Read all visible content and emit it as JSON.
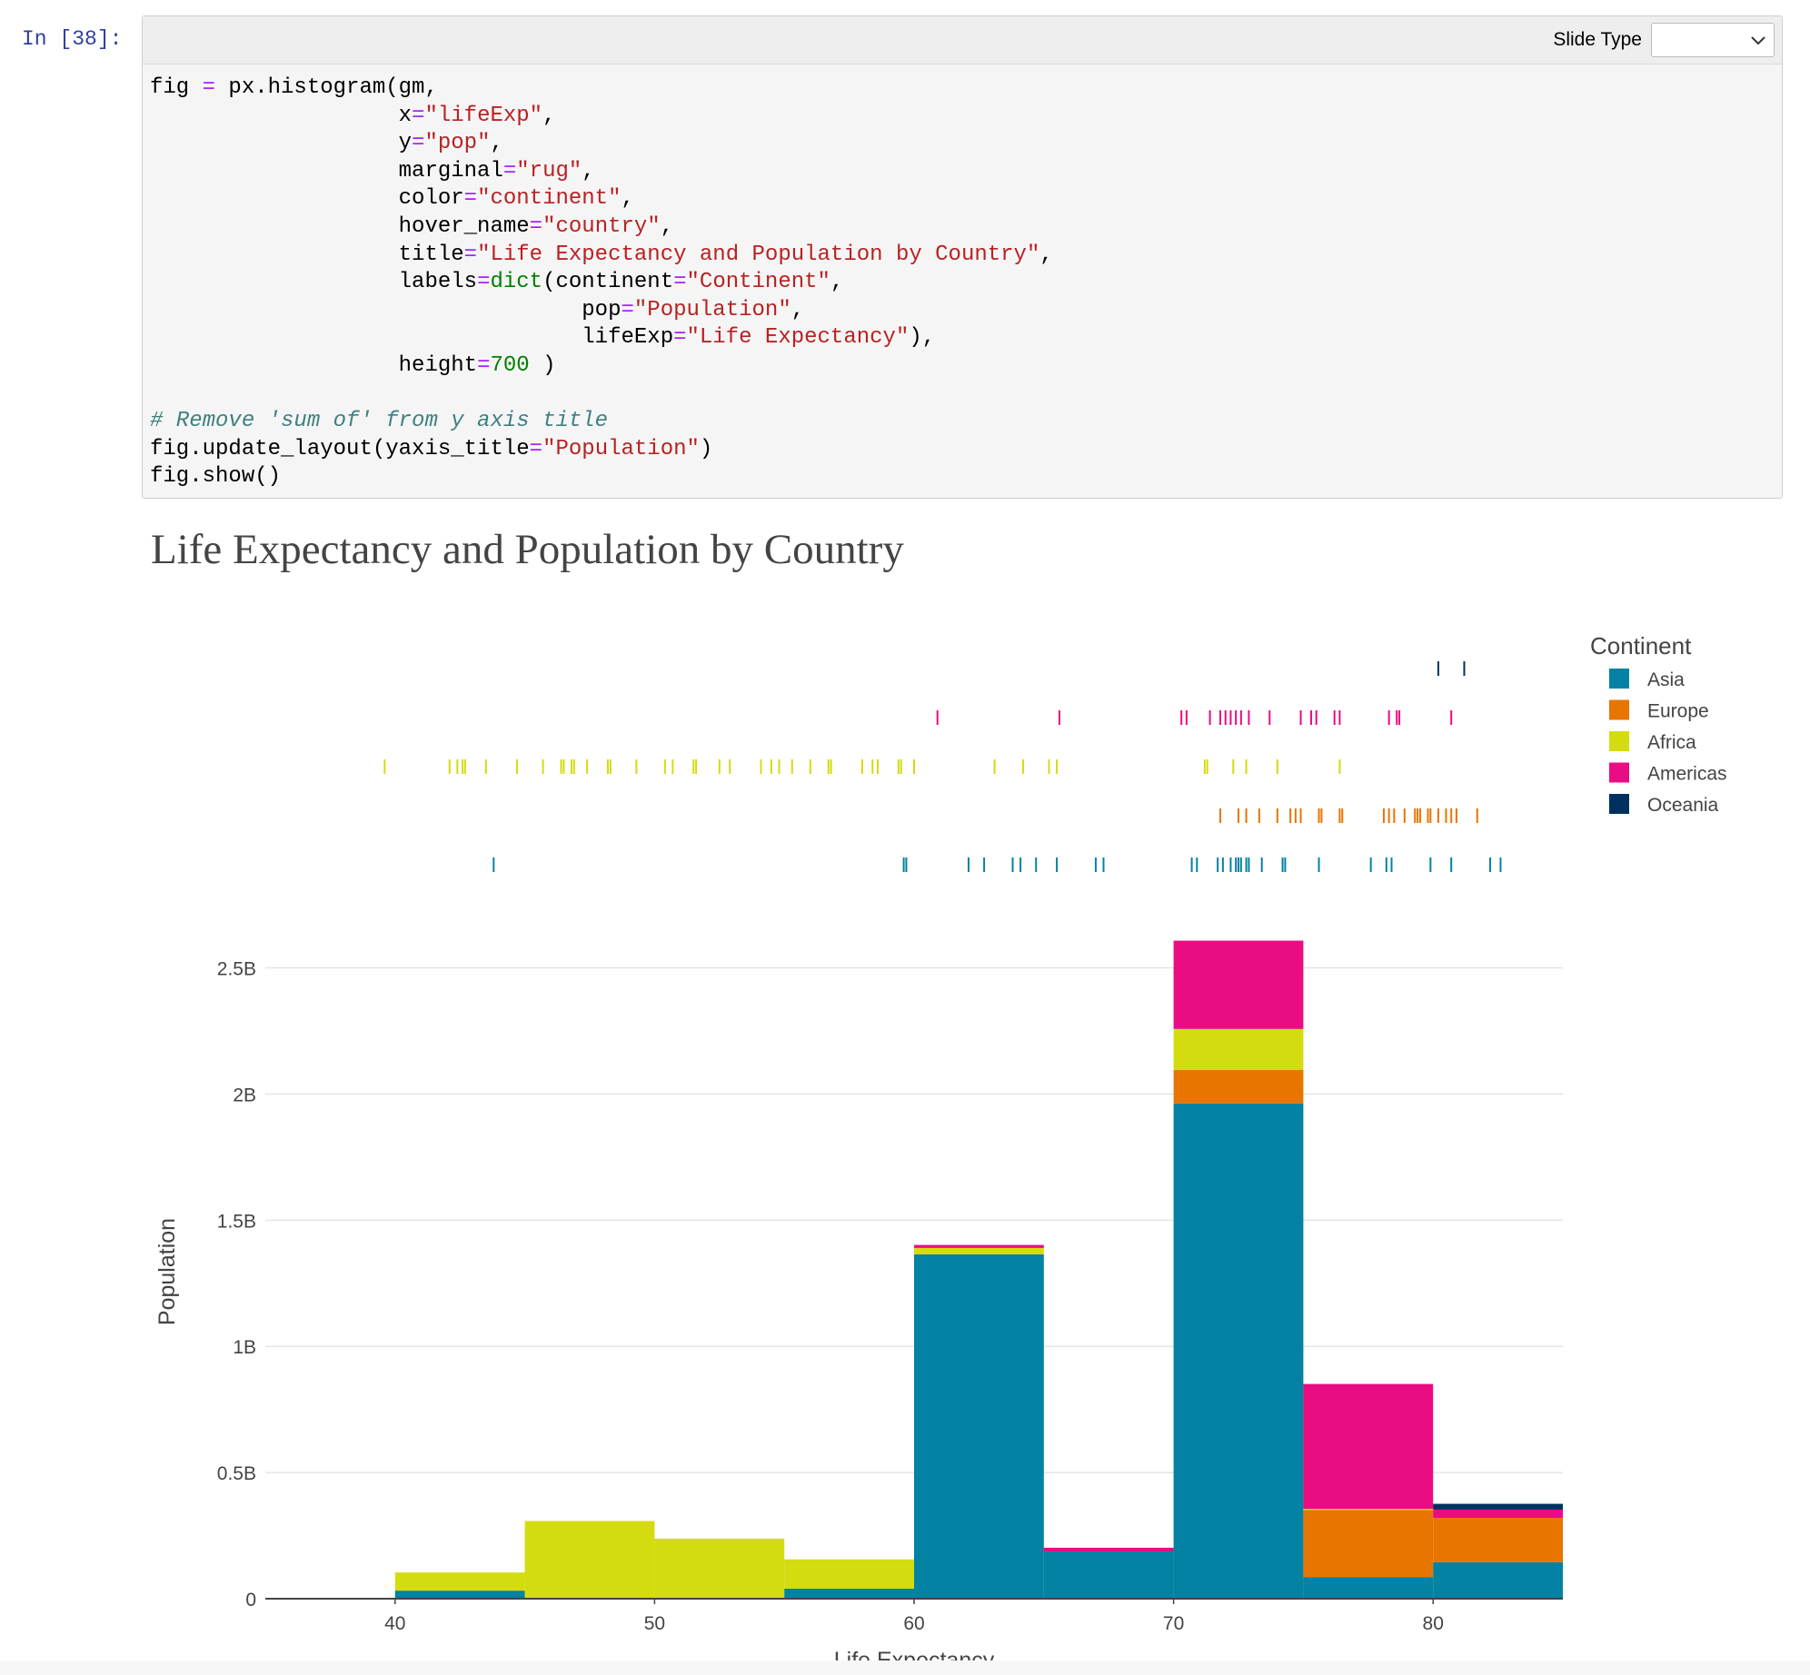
{
  "cell": {
    "prompt": "In [38]:",
    "slide_type_label": "Slide Type",
    "slide_type_value": "",
    "code_lines": [
      [
        [
          "fig ",
          ""
        ],
        [
          "=",
          "op"
        ],
        [
          " px.histogram(gm,",
          ""
        ]
      ],
      [
        [
          "                   x",
          ""
        ],
        [
          "=",
          "op"
        ],
        [
          "\"lifeExp\"",
          "str"
        ],
        [
          ",",
          ""
        ]
      ],
      [
        [
          "                   y",
          ""
        ],
        [
          "=",
          "op"
        ],
        [
          "\"pop\"",
          "str"
        ],
        [
          ",",
          ""
        ]
      ],
      [
        [
          "                   marginal",
          ""
        ],
        [
          "=",
          "op"
        ],
        [
          "\"rug\"",
          "str"
        ],
        [
          ",",
          ""
        ]
      ],
      [
        [
          "                   color",
          ""
        ],
        [
          "=",
          "op"
        ],
        [
          "\"continent\"",
          "str"
        ],
        [
          ",",
          ""
        ]
      ],
      [
        [
          "                   hover_name",
          ""
        ],
        [
          "=",
          "op"
        ],
        [
          "\"country\"",
          "str"
        ],
        [
          ",",
          ""
        ]
      ],
      [
        [
          "                   title",
          ""
        ],
        [
          "=",
          "op"
        ],
        [
          "\"Life Expectancy and Population by Country\"",
          "str"
        ],
        [
          ",",
          ""
        ]
      ],
      [
        [
          "                   labels",
          ""
        ],
        [
          "=",
          "op"
        ],
        [
          "dict",
          "bi"
        ],
        [
          "(continent",
          ""
        ],
        [
          "=",
          "op"
        ],
        [
          "\"Continent\"",
          "str"
        ],
        [
          ",",
          ""
        ]
      ],
      [
        [
          "                                 pop",
          ""
        ],
        [
          "=",
          "op"
        ],
        [
          "\"Population\"",
          "str"
        ],
        [
          ",",
          ""
        ]
      ],
      [
        [
          "                                 lifeExp",
          ""
        ],
        [
          "=",
          "op"
        ],
        [
          "\"Life Expectancy\"",
          "str"
        ],
        [
          "),",
          ""
        ]
      ],
      [
        [
          "                   height",
          ""
        ],
        [
          "=",
          "op"
        ],
        [
          "700",
          "num"
        ],
        [
          " )",
          ""
        ]
      ],
      [],
      [
        [
          "# Remove 'sum of' from y axis title",
          "cm"
        ]
      ],
      [
        [
          "fig.update_layout(yaxis_title",
          ""
        ],
        [
          "=",
          "op"
        ],
        [
          "\"Population\"",
          "str"
        ],
        [
          ")",
          ""
        ]
      ],
      [
        [
          "fig.show()",
          ""
        ]
      ]
    ]
  },
  "chart_data": {
    "type": "bar",
    "title": "Life Expectancy and Population by Country",
    "xlabel": "Life Expectancy",
    "ylabel": "Population",
    "xlim": [
      35,
      85
    ],
    "ylim": [
      0,
      2600000000.0
    ],
    "x_ticks": [
      40,
      50,
      60,
      70,
      80
    ],
    "y_ticks": [
      0,
      500000000,
      1000000000,
      1500000000,
      2000000000,
      2500000000
    ],
    "y_tick_labels": [
      "0",
      "0.5B",
      "1B",
      "1.5B",
      "2B",
      "2.5B"
    ],
    "bins": [
      "40-45",
      "45-50",
      "50-55",
      "55-60",
      "60-65",
      "65-70",
      "70-75",
      "75-80",
      "80-85"
    ],
    "bin_edges": [
      40,
      45,
      50,
      55,
      60,
      65,
      70,
      75,
      80,
      85
    ],
    "legend_title": "Continent",
    "legend_position": "top-right",
    "grid": true,
    "series": [
      {
        "name": "Asia",
        "color": "#0382a3",
        "values": [
          32000000,
          0,
          0,
          40000000,
          1365000000,
          187000000,
          1963000000,
          86000000,
          145000000
        ]
      },
      {
        "name": "Europe",
        "color": "#e87500",
        "values": [
          0,
          0,
          0,
          0,
          0,
          0,
          133000000,
          265000000,
          175000000
        ]
      },
      {
        "name": "Africa",
        "color": "#d4dc0f",
        "values": [
          72000000,
          308000000,
          238000000,
          116000000,
          25000000,
          0,
          162000000,
          5000000,
          0
        ]
      },
      {
        "name": "Americas",
        "color": "#ea0c82",
        "values": [
          0,
          0,
          0,
          0,
          12000000,
          15000000,
          350000000,
          495000000,
          33000000
        ]
      },
      {
        "name": "Oceania",
        "color": "#00305f",
        "values": [
          0,
          0,
          0,
          0,
          0,
          0,
          0,
          0,
          23000000
        ]
      }
    ],
    "rug": {
      "Asia": [
        43.8,
        59.6,
        59.7,
        62.1,
        62.7,
        63.8,
        64.1,
        64.7,
        65.5,
        67.0,
        67.3,
        70.7,
        70.9,
        71.7,
        71.9,
        72.2,
        72.4,
        72.5,
        72.6,
        72.8,
        72.9,
        73.4,
        74.2,
        74.3,
        75.6,
        77.6,
        78.2,
        78.4,
        79.9,
        80.7,
        82.2,
        82.6
      ],
      "Europe": [
        71.8,
        72.5,
        72.8,
        73.3,
        74.0,
        74.5,
        74.7,
        74.9,
        75.6,
        75.7,
        76.4,
        76.5,
        78.1,
        78.3,
        78.5,
        78.9,
        79.3,
        79.4,
        79.5,
        79.8,
        79.9,
        80.2,
        80.5,
        80.7,
        80.9,
        81.7
      ],
      "Africa": [
        39.6,
        42.1,
        42.4,
        42.6,
        42.7,
        43.5,
        44.7,
        45.7,
        46.4,
        46.5,
        46.8,
        46.9,
        47.4,
        48.2,
        48.3,
        49.3,
        50.4,
        50.7,
        51.5,
        51.6,
        52.5,
        52.9,
        54.1,
        54.5,
        54.8,
        55.3,
        56.0,
        56.7,
        56.8,
        58.0,
        58.4,
        58.6,
        59.4,
        59.5,
        60.0,
        63.1,
        64.2,
        65.2,
        65.5,
        71.2,
        71.3,
        72.3,
        72.8,
        74.0,
        76.4
      ],
      "Americas": [
        60.9,
        65.6,
        70.3,
        70.5,
        71.4,
        71.8,
        72.0,
        72.2,
        72.4,
        72.6,
        72.9,
        73.7,
        74.9,
        75.3,
        75.5,
        76.2,
        76.4,
        78.3,
        78.6,
        78.7,
        80.7
      ],
      "Oceania": [
        80.2,
        81.2
      ]
    }
  }
}
